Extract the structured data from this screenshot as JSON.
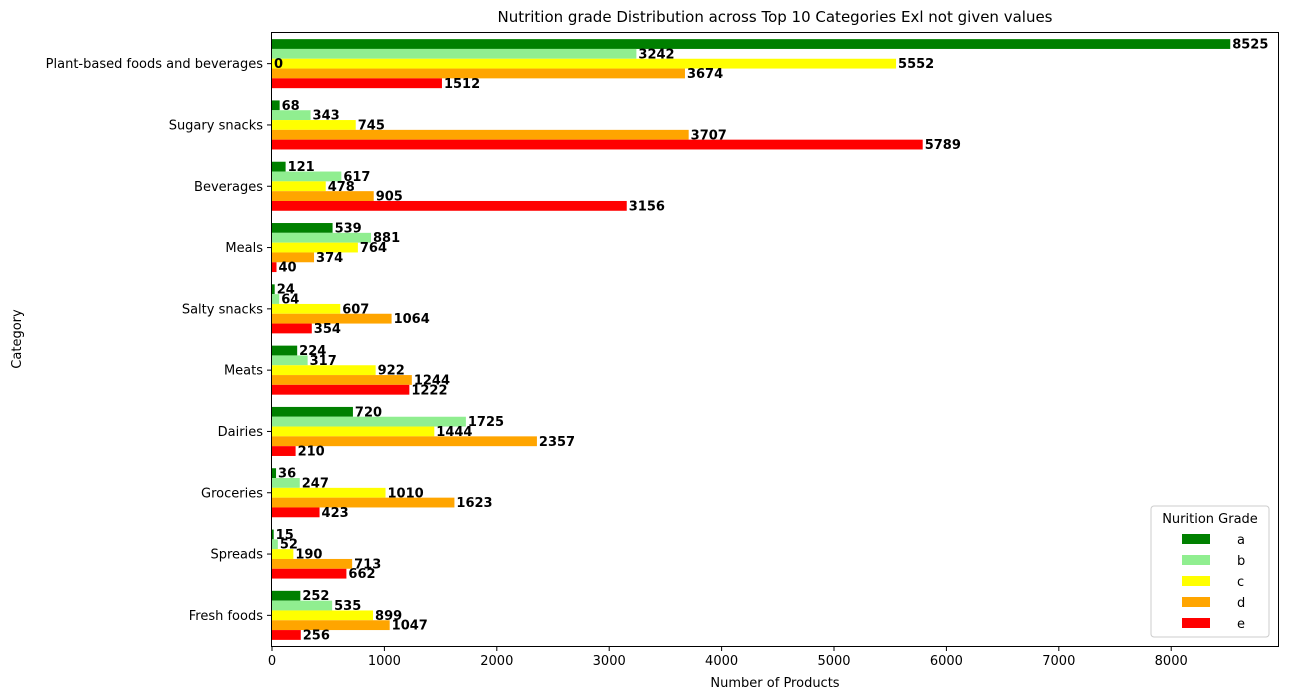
{
  "chart_data": {
    "type": "bar",
    "orientation": "horizontal",
    "title": "Nutrition grade Distribution across Top 10 Categories Exl not given values",
    "xlabel": "Number of Products",
    "ylabel": "Category",
    "xlim": [
      0,
      8950
    ],
    "xticks": [
      0,
      1000,
      2000,
      3000,
      4000,
      5000,
      6000,
      7000,
      8000
    ],
    "grid": false,
    "legend_title": "Nurition Grade",
    "legend_position": "lower-right",
    "categories": [
      "Plant-based foods and beverages",
      "Sugary snacks",
      "Beverages",
      "Meals",
      "Salty snacks",
      "Meats",
      "Dairies",
      "Groceries",
      "Spreads",
      "Fresh foods"
    ],
    "series": [
      {
        "name": "a",
        "color": "#008000",
        "values": [
          8525,
          68,
          121,
          539,
          24,
          224,
          720,
          36,
          15,
          252
        ]
      },
      {
        "name": "b",
        "color": "#90ee90",
        "values": [
          3242,
          343,
          617,
          881,
          64,
          317,
          1725,
          247,
          52,
          535
        ]
      },
      {
        "name": "c",
        "color": "#ffff00",
        "values": [
          5552,
          745,
          478,
          764,
          607,
          922,
          1444,
          1010,
          190,
          899
        ]
      },
      {
        "name": "d",
        "color": "#ffa500",
        "values": [
          3674,
          3707,
          905,
          374,
          1064,
          1244,
          2357,
          1623,
          713,
          1047
        ]
      },
      {
        "name": "e",
        "color": "#ff0000",
        "values": [
          1512,
          5789,
          3156,
          40,
          354,
          1222,
          210,
          423,
          662,
          256
        ]
      }
    ],
    "extra_annotations": [
      {
        "category": "Plant-based foods and beverages",
        "value": 0,
        "text": "0"
      }
    ]
  }
}
